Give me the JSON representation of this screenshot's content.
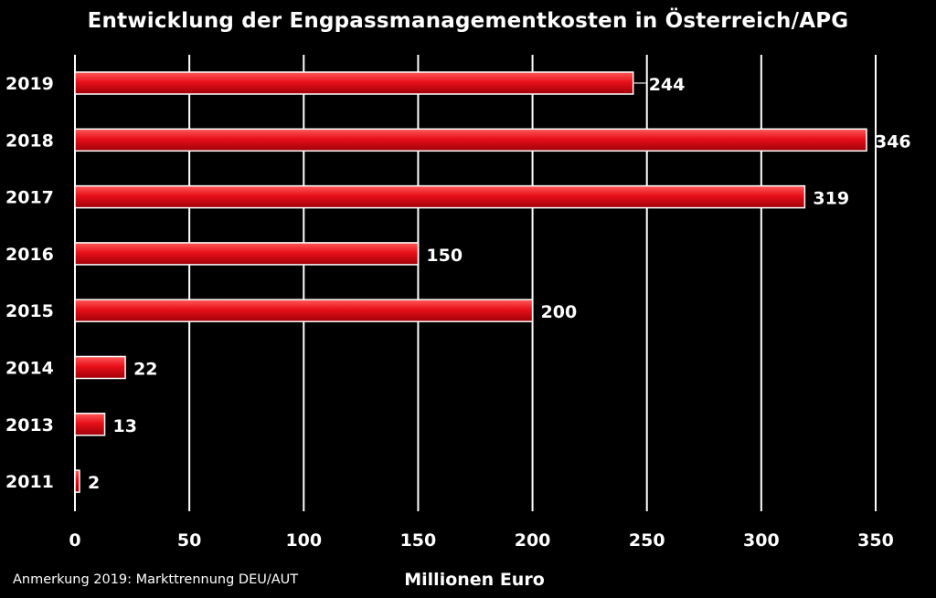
{
  "chart_data": {
    "type": "bar",
    "orientation": "horizontal",
    "title": "Entwicklung der Engpassmanagementkosten in Österreich/APG",
    "xlabel": "Millionen Euro",
    "ylabel": "",
    "categories": [
      "2019",
      "2018",
      "2017",
      "2016",
      "2015",
      "2014",
      "2013",
      "2011"
    ],
    "values": [
      244,
      346,
      319,
      150,
      200,
      22,
      13,
      2
    ],
    "data_labels": [
      "244",
      "346",
      "319",
      "150",
      "200",
      "22",
      "13",
      "2"
    ],
    "xlim": [
      0,
      350
    ],
    "xticks": [
      "0",
      "50",
      "100",
      "150",
      "200",
      "250",
      "300",
      "350"
    ],
    "grid": true,
    "legend": "none",
    "colors": {
      "bar": "#e8101a",
      "bar_dark": "#a00008",
      "bar_light": "#ff5a5a",
      "background": "#000000",
      "text": "#ffffff"
    }
  },
  "footnote": "Anmerkung 2019: Markttrennung DEU/AUT"
}
